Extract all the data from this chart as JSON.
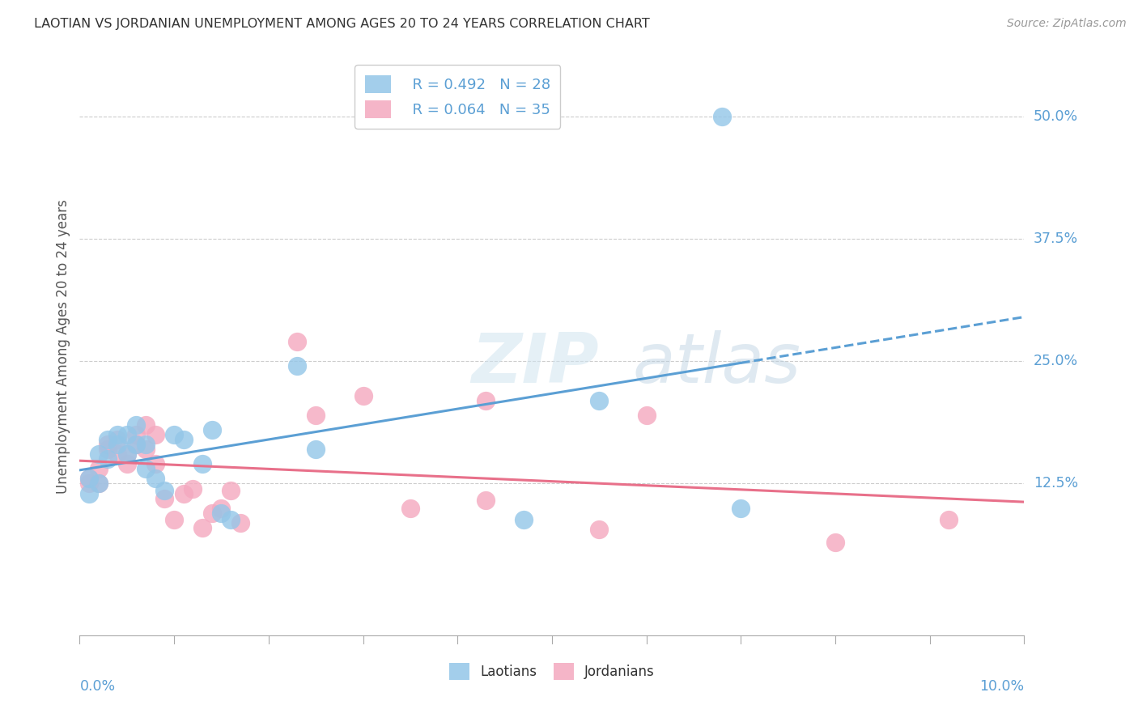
{
  "title": "LAOTIAN VS JORDANIAN UNEMPLOYMENT AMONG AGES 20 TO 24 YEARS CORRELATION CHART",
  "source": "Source: ZipAtlas.com",
  "ylabel": "Unemployment Among Ages 20 to 24 years",
  "xlim": [
    0.0,
    0.1
  ],
  "ylim": [
    -0.03,
    0.56
  ],
  "yticks": [
    0.125,
    0.25,
    0.375,
    0.5
  ],
  "ytick_labels": [
    "12.5%",
    "25.0%",
    "37.5%",
    "50.0%"
  ],
  "watermark_zip": "ZIP",
  "watermark_atlas": "atlas",
  "blue_color": "#93c6e8",
  "pink_color": "#f4a8bf",
  "blue_line_color": "#5b9fd4",
  "pink_line_color": "#e8708a",
  "legend_blue_R": "R = 0.492",
  "legend_blue_N": "N = 28",
  "legend_pink_R": "R = 0.064",
  "legend_pink_N": "N = 35",
  "laotian_x": [
    0.001,
    0.001,
    0.002,
    0.002,
    0.003,
    0.003,
    0.004,
    0.004,
    0.005,
    0.005,
    0.006,
    0.006,
    0.007,
    0.007,
    0.008,
    0.009,
    0.01,
    0.011,
    0.013,
    0.014,
    0.015,
    0.016,
    0.023,
    0.025,
    0.047,
    0.055,
    0.068,
    0.07
  ],
  "laotian_y": [
    0.115,
    0.13,
    0.125,
    0.155,
    0.15,
    0.17,
    0.165,
    0.175,
    0.155,
    0.175,
    0.165,
    0.185,
    0.14,
    0.165,
    0.13,
    0.118,
    0.175,
    0.17,
    0.145,
    0.18,
    0.095,
    0.088,
    0.245,
    0.16,
    0.088,
    0.21,
    0.5,
    0.1
  ],
  "jordanian_x": [
    0.001,
    0.001,
    0.002,
    0.002,
    0.003,
    0.003,
    0.004,
    0.004,
    0.005,
    0.005,
    0.006,
    0.006,
    0.007,
    0.007,
    0.008,
    0.008,
    0.009,
    0.01,
    0.011,
    0.012,
    0.013,
    0.014,
    0.015,
    0.016,
    0.017,
    0.023,
    0.025,
    0.03,
    0.035,
    0.043,
    0.043,
    0.055,
    0.06,
    0.08,
    0.092
  ],
  "jordanian_y": [
    0.13,
    0.125,
    0.14,
    0.125,
    0.16,
    0.165,
    0.17,
    0.155,
    0.145,
    0.155,
    0.165,
    0.175,
    0.16,
    0.185,
    0.175,
    0.145,
    0.11,
    0.088,
    0.115,
    0.12,
    0.08,
    0.095,
    0.1,
    0.118,
    0.085,
    0.27,
    0.195,
    0.215,
    0.1,
    0.108,
    0.21,
    0.078,
    0.195,
    0.065,
    0.088
  ],
  "background_color": "#ffffff",
  "grid_color": "#cccccc"
}
